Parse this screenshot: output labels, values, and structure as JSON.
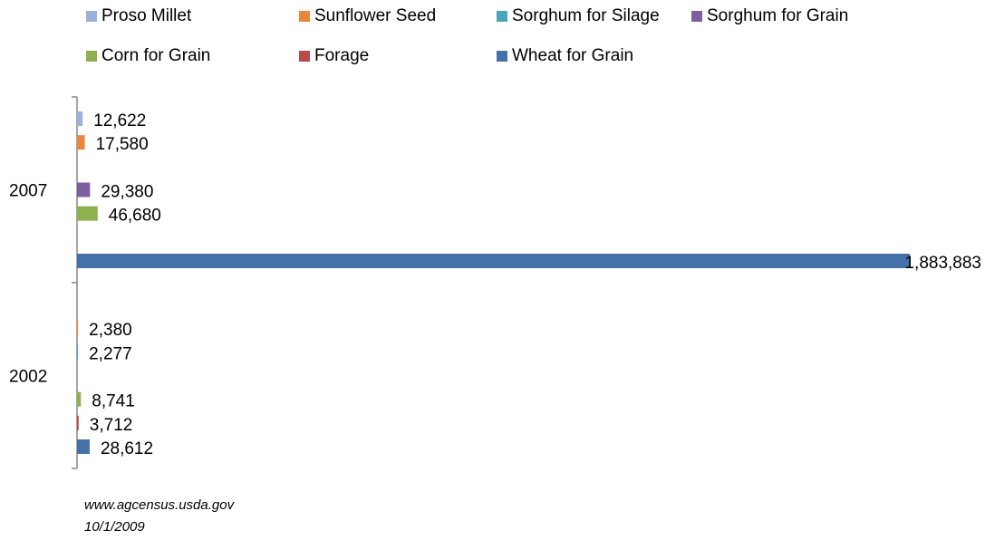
{
  "chart_data": {
    "type": "bar",
    "orientation": "horizontal",
    "categories": [
      "2007",
      "2002"
    ],
    "series": [
      {
        "name": "Proso Millet",
        "color": "#9bb1d9",
        "values": [
          12622,
          null
        ],
        "value_labels": [
          "12,622",
          null
        ]
      },
      {
        "name": "Sunflower Seed",
        "color": "#e8873b",
        "values": [
          17580,
          2380
        ],
        "value_labels": [
          "17,580",
          "2,380"
        ]
      },
      {
        "name": "Sorghum for Silage",
        "color": "#4aa5b8",
        "values": [
          null,
          2277
        ],
        "value_labels": [
          null,
          "2,277"
        ]
      },
      {
        "name": "Sorghum for Grain",
        "color": "#7d5fa0",
        "values": [
          29380,
          null
        ],
        "value_labels": [
          "29,380",
          null
        ]
      },
      {
        "name": "Corn for Grain",
        "color": "#8fb04e",
        "values": [
          46680,
          8741
        ],
        "value_labels": [
          "46,680",
          "8,741"
        ]
      },
      {
        "name": "Forage",
        "color": "#b84a48",
        "values": [
          null,
          3712
        ],
        "value_labels": [
          null,
          "3,712"
        ]
      },
      {
        "name": "Wheat for Grain",
        "color": "#4472a8",
        "values": [
          1883883,
          28612
        ],
        "value_labels": [
          "1,883,883",
          "28,612"
        ]
      }
    ],
    "notes": [
      "www.agcensus.usda.gov",
      "10/1/2009"
    ]
  }
}
